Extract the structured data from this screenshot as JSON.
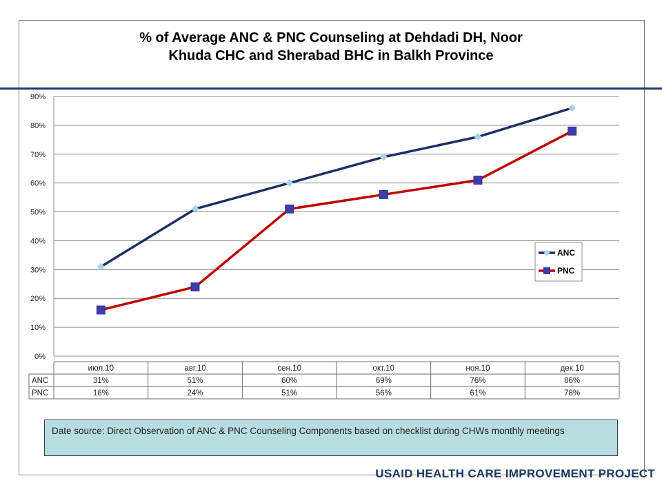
{
  "header": {
    "title_line1": "% of Average ANC & PNC Counseling at Dehdadi DH, Noor",
    "title_line2": "Khuda CHC and Sherabad BHC in Balkh Province"
  },
  "chart_data": {
    "type": "line",
    "categories": [
      "июл.10",
      "авг.10",
      "сен.10",
      "окт.10",
      "ноя.10",
      "дек.10"
    ],
    "series": [
      {
        "name": "ANC",
        "values": [
          31,
          51,
          60,
          69,
          76,
          86
        ],
        "labels": [
          "31%",
          "51%",
          "60%",
          "69%",
          "76%",
          "86%"
        ],
        "color": "#1f2f63",
        "marker": "diamond",
        "marker_color": "#a9d3e3"
      },
      {
        "name": "PNC",
        "values": [
          16,
          24,
          51,
          56,
          61,
          78
        ],
        "labels": [
          "16%",
          "24%",
          "51%",
          "56%",
          "61%",
          "78%"
        ],
        "color": "#c00000",
        "marker": "square",
        "marker_color": "#3c3cab"
      }
    ],
    "ylim": [
      0,
      90
    ],
    "yticks": [
      0,
      10,
      20,
      30,
      40,
      50,
      60,
      70,
      80,
      90
    ],
    "ytick_labels": [
      "0%",
      "10%",
      "20%",
      "30%",
      "40%",
      "50%",
      "60%",
      "70%",
      "80%",
      "90%"
    ],
    "grid": true,
    "legend_position": "right",
    "data_table": true
  },
  "note": {
    "text": "Date source: Direct Observation of ANC & PNC Counseling Components based on checklist during CHWs monthly meetings"
  },
  "footer": {
    "text": "USAID HEALTH CARE IMPROVEMENT PROJECT"
  }
}
